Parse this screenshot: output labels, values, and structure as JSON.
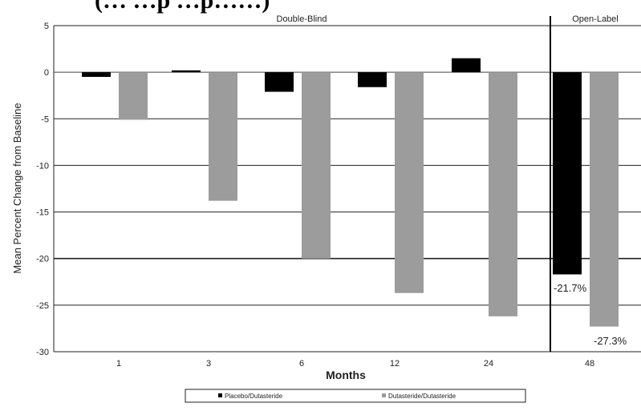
{
  "header": {
    "title_fragment": "(…                  …p                            …p……)"
  },
  "chart_data": {
    "type": "bar",
    "categories": [
      "1",
      "3",
      "6",
      "12",
      "24",
      "48"
    ],
    "series": [
      {
        "name": "Placebo/Dutasteride",
        "values": [
          -0.5,
          0.2,
          -2.1,
          -1.6,
          1.5,
          -21.7
        ],
        "color": "#000000"
      },
      {
        "name": "Dutasteride/Dutasteride",
        "values": [
          -5.1,
          -13.8,
          -20.0,
          -23.7,
          -26.2,
          -27.3
        ],
        "color": "#9c9c9c"
      }
    ],
    "xlabel": "Months",
    "ylabel": "Mean Percent Change from Baseline",
    "ylim": [
      -30,
      5
    ],
    "yticks": [
      5,
      0,
      -5,
      -10,
      -15,
      -20,
      -25,
      -30
    ],
    "grid": true,
    "sections": [
      "Double-Blind",
      "Open-Label"
    ],
    "annotations": [
      "-21.7%",
      "-27.3%"
    ],
    "legend_position": "bottom"
  }
}
